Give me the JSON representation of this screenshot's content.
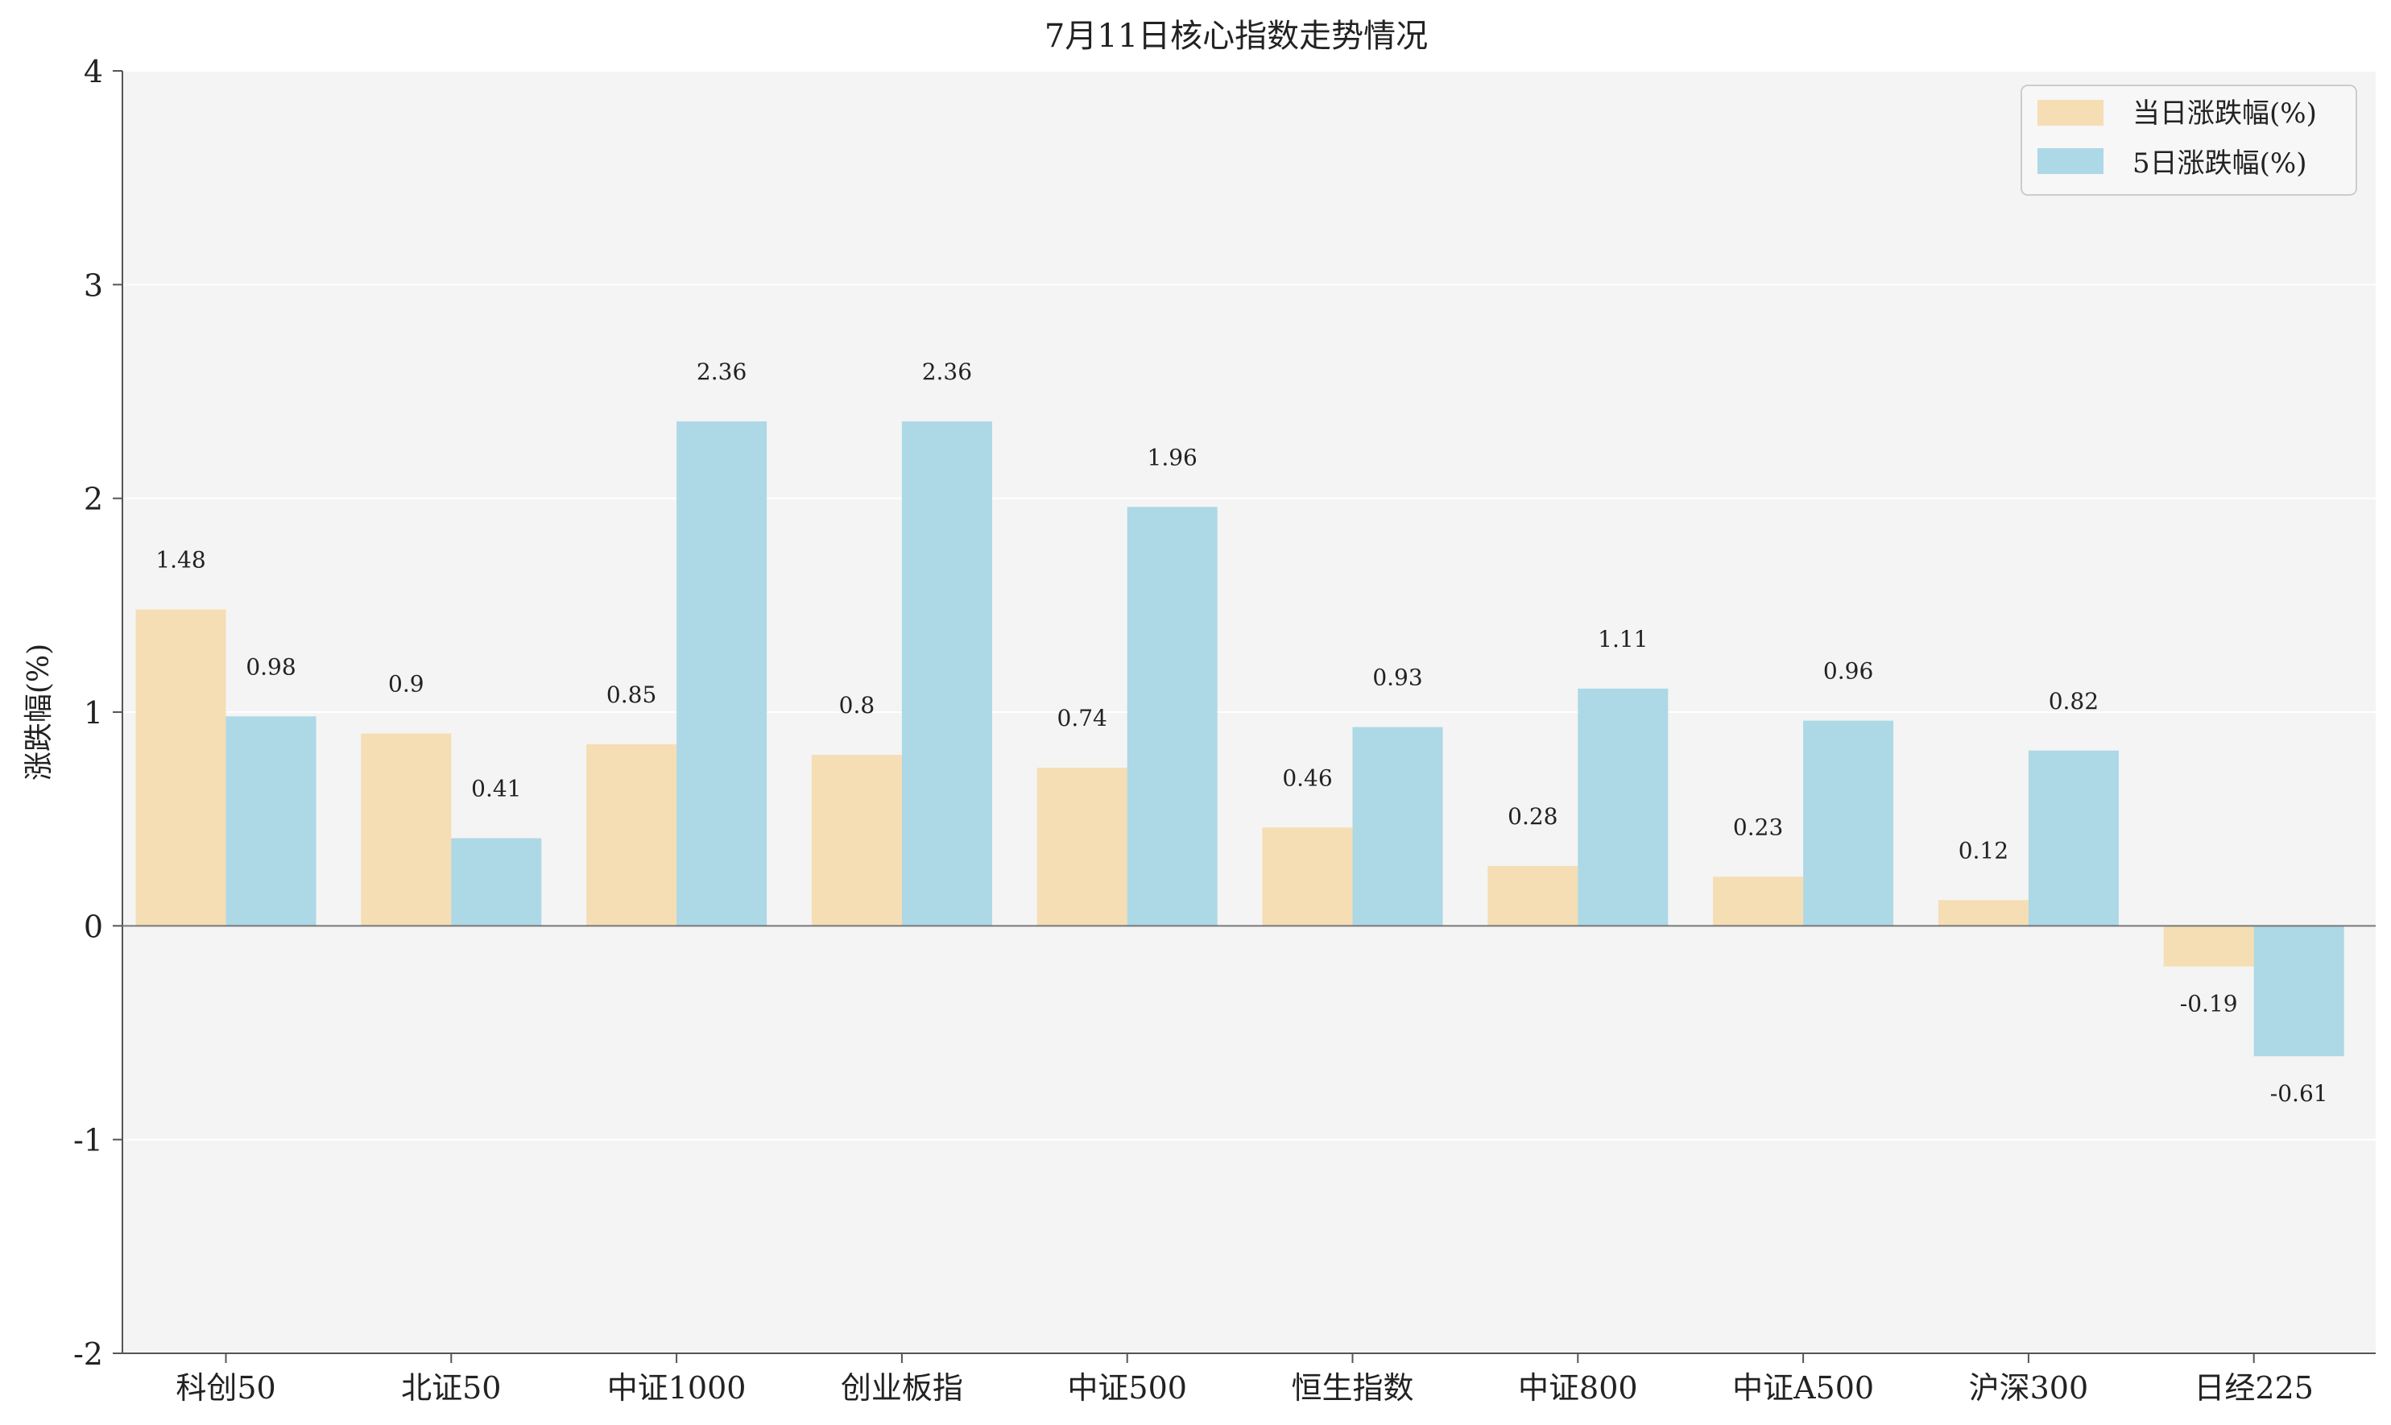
{
  "chart_data": {
    "type": "bar",
    "title": "7月11日核心指数走势情况",
    "xlabel": "",
    "ylabel": "涨跌幅(%)",
    "ylim": [
      -2,
      4
    ],
    "yticks": [
      "-2",
      "-1",
      "0",
      "1",
      "2",
      "3",
      "4"
    ],
    "grid": true,
    "legend_position": "top-right",
    "categories": [
      "科创50",
      "北证50",
      "中证1000",
      "创业板指",
      "中证500",
      "恒生指数",
      "中证800",
      "中证A500",
      "沪深300",
      "日经225"
    ],
    "series": [
      {
        "name": "当日涨跌幅(%)",
        "color": "#f5deb3",
        "values": [
          1.48,
          0.9,
          0.85,
          0.8,
          0.74,
          0.46,
          0.28,
          0.23,
          0.12,
          -0.19
        ],
        "labels": [
          "1.48",
          "0.9",
          "0.85",
          "0.8",
          "0.74",
          "0.46",
          "0.28",
          "0.23",
          "0.12",
          "-0.19"
        ]
      },
      {
        "name": "5日涨跌幅(%)",
        "color": "#add8e6",
        "values": [
          0.98,
          0.41,
          2.36,
          2.36,
          1.96,
          0.93,
          1.11,
          0.96,
          0.82,
          -0.61
        ],
        "labels": [
          "0.98",
          "0.41",
          "2.36",
          "2.36",
          "1.96",
          "0.93",
          "1.11",
          "0.96",
          "0.82",
          "-0.61"
        ]
      }
    ]
  }
}
